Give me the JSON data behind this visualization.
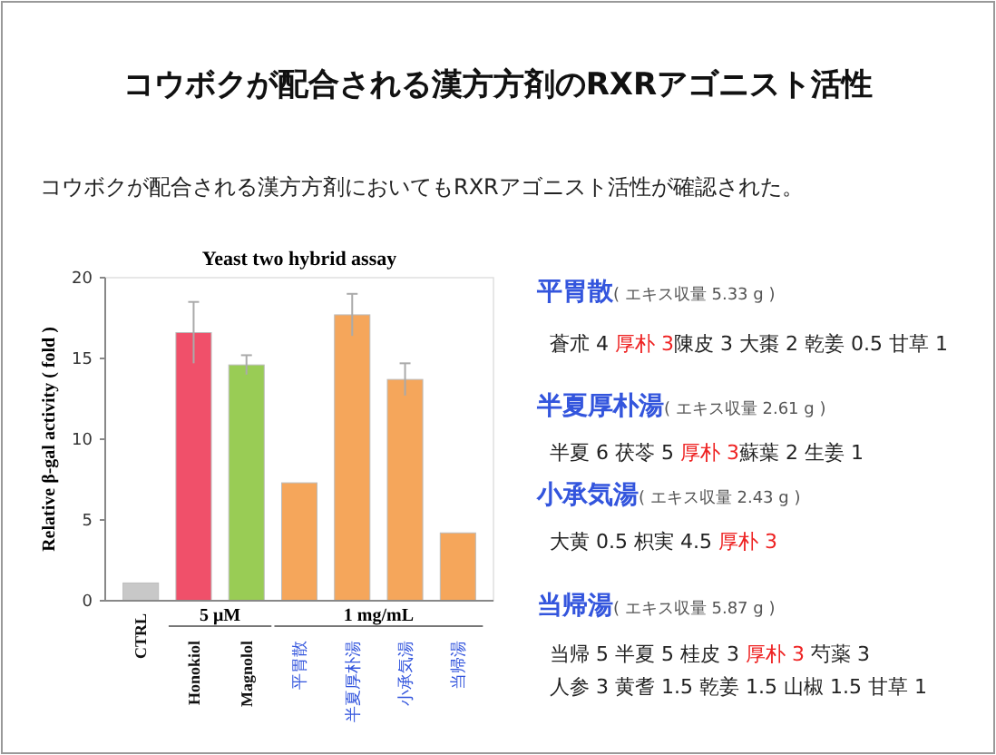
{
  "chart_data": {
    "type": "bar",
    "title": "コウボクが配合される漢方方剤のRXRアゴニスト活性",
    "subtitle": "コウボクが配合される漢方方剤においてもRXRアゴニスト活性が確認された。",
    "ylabel": "Relative β-gal activity ( fold )",
    "categories": [
      "CTRL",
      "Honokiol",
      "Magnolol",
      "平胃散",
      "半夏厚朴湯",
      "小承気湯",
      "当帰湯"
    ],
    "values": [
      1.1,
      16.6,
      14.6,
      7.3,
      17.7,
      13.7,
      4.2
    ],
    "errors": [
      null,
      1.9,
      0.6,
      null,
      1.3,
      1.0,
      null
    ],
    "colors": [
      "#c8c8c8",
      "#f0506a",
      "#99cc55",
      "#f5a65b",
      "#f5a65b",
      "#f5a65b",
      "#f5a65b"
    ],
    "ylim": [
      0,
      20
    ],
    "yticks": [
      0,
      5,
      10,
      15,
      20
    ],
    "grid": false,
    "annotations": [
      "Yeast two hybrid assay",
      "5 μM",
      "1 mg/mL",
      "平胃散",
      "( エキス収量 5.33 g )",
      "蒼朮 4 ",
      "厚朴 3",
      "陳皮 3 大棗 2 乾姜 0.5 甘草 1",
      "半夏厚朴湯",
      "( エキス収量 2.61 g )",
      "半夏 6 茯苓 5 ",
      "厚朴 3",
      "蘇葉 2 生姜 1",
      "小承気湯",
      "( エキス収量 2.43 g )",
      "大黄 0.5 枳実 4.5 ",
      "厚朴 3",
      "当帰湯",
      "( エキス収量 5.87 g )",
      "当帰 5 半夏 5 桂皮 3 ",
      "厚朴 3",
      " 芍薬 3",
      "人参 3 黄耆 1.5 乾姜 1.5 山椒 1.5 甘草 1"
    ]
  }
}
